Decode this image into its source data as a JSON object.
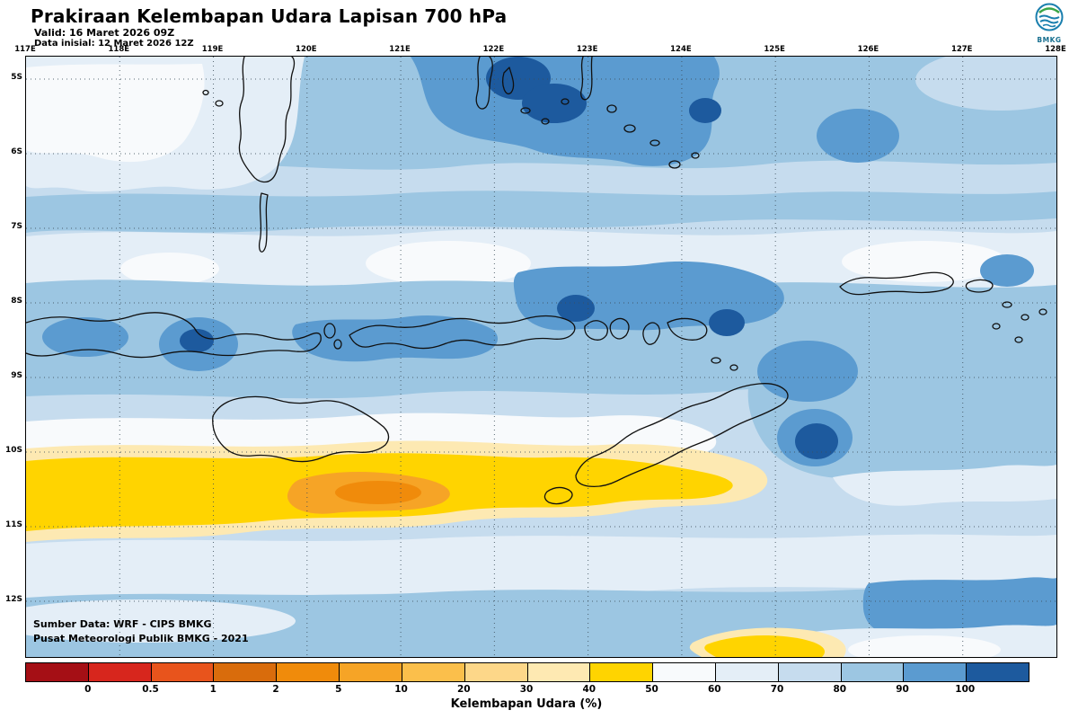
{
  "header": {
    "title": "Prakiraan Kelembapan Udara Lapisan 700 hPa",
    "valid_line": "Valid: 16 Maret 2026 09Z",
    "init_line": "Data inisial: 12 Maret 2026 12Z",
    "logo_text": "BMKG"
  },
  "map": {
    "lon_labels": [
      "117E",
      "118E",
      "119E",
      "120E",
      "121E",
      "122E",
      "123E",
      "124E",
      "125E",
      "126E",
      "127E",
      "128E"
    ],
    "lat_labels": [
      "5S",
      "6S",
      "7S",
      "8S",
      "9S",
      "10S",
      "11S",
      "12S"
    ],
    "source_line1": "Sumber Data: WRF - CIPS BMKG",
    "source_line2": "Pusat Meteorologi Publik BMKG - 2021"
  },
  "colorbar": {
    "label": "Kelembapan Udara (%)",
    "tick_labels": [
      "0",
      "0.5",
      "1",
      "2",
      "5",
      "10",
      "20",
      "30",
      "40",
      "50",
      "60",
      "70",
      "80",
      "90",
      "100"
    ],
    "cell_colors": [
      "#a50f15",
      "#d7261d",
      "#e8541c",
      "#d96c0c",
      "#f08b0b",
      "#f6a426",
      "#fbbf4b",
      "#fdd789",
      "#fee9b2",
      "#ffd400",
      "#f8fafc",
      "#e4eef7",
      "#c6dcee",
      "#9cc6e2",
      "#5b9bd0",
      "#1d5a9e"
    ]
  },
  "field_colors": {
    "rh_90_100": "#1d5a9e",
    "rh_80_90": "#5b9bd0",
    "rh_70_80": "#9cc6e2",
    "rh_60_70": "#c6dcee",
    "rh_50_60": "#e4eef7",
    "rh_40_50": "#f8fafc",
    "rh_30_40": "#ffd400",
    "rh_20_30": "#fde9b2",
    "rh_10_20": "#f6a426"
  },
  "chart_data": {
    "type": "heatmap",
    "title": "Prakiraan Kelembapan Udara Lapisan 700 hPa",
    "x_ticks": [
      "117E",
      "118E",
      "119E",
      "120E",
      "121E",
      "122E",
      "123E",
      "124E",
      "125E",
      "126E",
      "127E",
      "128E"
    ],
    "y_ticks": [
      "5S",
      "6S",
      "7S",
      "8S",
      "9S",
      "10S",
      "11S",
      "12S"
    ],
    "legend_label": "Kelembapan Udara (%)",
    "legend_boundaries": [
      0,
      0.5,
      1,
      2,
      5,
      10,
      20,
      30,
      40,
      50,
      60,
      70,
      80,
      90,
      100
    ],
    "legend_position": "bottom"
  }
}
